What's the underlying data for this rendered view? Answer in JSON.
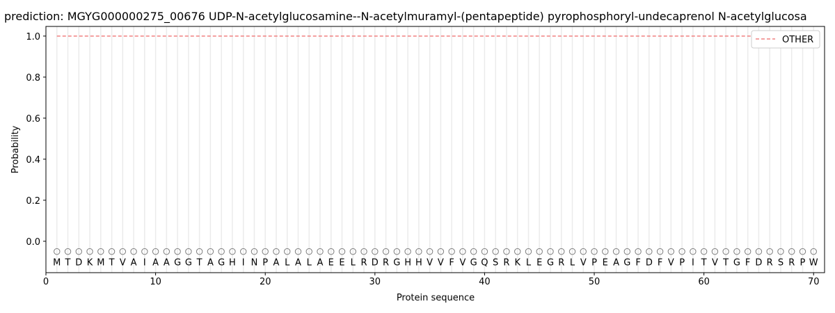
{
  "chart_data": {
    "type": "line",
    "title": "prediction: MGYG000000275_00676 UDP-N-acetylglucosamine--N-acetylmuramyl-(pentapeptide) pyrophosphoryl-undecaprenol N-acetylglucosa",
    "xlabel": "Protein sequence",
    "ylabel": "Probability",
    "xlim": [
      0,
      71
    ],
    "ylim": [
      -0.153,
      1.047
    ],
    "xticks": [
      0,
      10,
      20,
      30,
      40,
      50,
      60,
      70
    ],
    "yticks": [
      0.0,
      0.2,
      0.4,
      0.6,
      0.8,
      1.0
    ],
    "ytick_labels": [
      "0.0",
      "0.2",
      "0.4",
      "0.6",
      "0.8",
      "1.0"
    ],
    "grid": "vertical lines at each residue",
    "legend_placement": "top-right",
    "series": [
      {
        "name": "OTHER",
        "color": "#f08080",
        "style": "dashed",
        "x_range": [
          1,
          70
        ],
        "value": 1.0
      }
    ],
    "markers": {
      "y": -0.05,
      "shape": "open circle",
      "color": "#808080"
    },
    "sequence_label_y": -0.1,
    "sequence": [
      "M",
      "T",
      "D",
      "K",
      "M",
      "T",
      "V",
      "A",
      "I",
      "A",
      "A",
      "G",
      "G",
      "T",
      "A",
      "G",
      "H",
      "I",
      "N",
      "P",
      "A",
      "L",
      "A",
      "L",
      "A",
      "E",
      "E",
      "L",
      "R",
      "D",
      "R",
      "G",
      "H",
      "H",
      "V",
      "V",
      "F",
      "V",
      "G",
      "Q",
      "S",
      "R",
      "K",
      "L",
      "E",
      "G",
      "R",
      "L",
      "V",
      "P",
      "E",
      "A",
      "G",
      "F",
      "D",
      "F",
      "V",
      "P",
      "I",
      "T",
      "V",
      "T",
      "G",
      "F",
      "D",
      "R",
      "S",
      "R",
      "P",
      "W"
    ]
  }
}
